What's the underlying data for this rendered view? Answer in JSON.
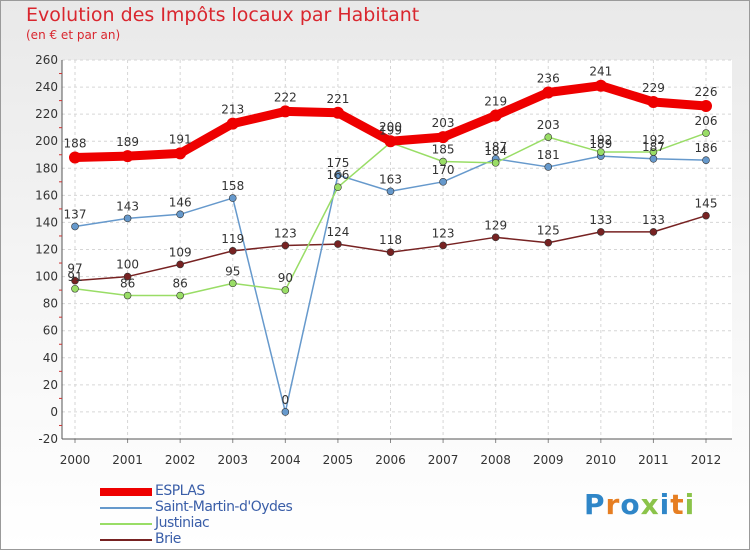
{
  "chart_data": {
    "type": "line",
    "title": "Evolution des Impôts locaux par Habitant",
    "subtitle": "(en € et par an)",
    "x": [
      "2000",
      "2001",
      "2002",
      "2003",
      "2004",
      "2005",
      "2006",
      "2007",
      "2008",
      "2009",
      "2010",
      "2011",
      "2012"
    ],
    "ylim": [
      -20,
      260
    ],
    "yticks": [
      -20,
      0,
      20,
      40,
      60,
      80,
      100,
      120,
      140,
      160,
      180,
      200,
      220,
      240,
      260
    ],
    "grid": true,
    "legend_position": "bottom-left",
    "series": [
      {
        "name": "ESPLAS",
        "color": "#ee0000",
        "values": [
          188,
          189,
          191,
          213,
          222,
          221,
          200,
          203,
          219,
          236,
          241,
          229,
          226
        ]
      },
      {
        "name": "Saint-Martin-d'Oydes",
        "color": "#6699cc",
        "values": [
          137,
          143,
          146,
          158,
          0,
          175,
          163,
          170,
          187,
          181,
          189,
          187,
          186
        ]
      },
      {
        "name": "Justiniac",
        "color": "#99dd66",
        "values": [
          91,
          86,
          86,
          95,
          90,
          166,
          199,
          185,
          184,
          203,
          192,
          192,
          206
        ]
      },
      {
        "name": "Brie",
        "color": "#772222",
        "values": [
          97,
          100,
          109,
          119,
          123,
          124,
          118,
          123,
          129,
          125,
          133,
          133,
          145
        ]
      }
    ]
  },
  "brand": {
    "letters": [
      "P",
      "r",
      "o",
      "x",
      "i",
      "t",
      "i"
    ],
    "colors": [
      "#2f86c8",
      "#e67e22",
      "#2f86c8",
      "#8bc34a",
      "#2f86c8",
      "#e67e22",
      "#8bc34a"
    ]
  }
}
